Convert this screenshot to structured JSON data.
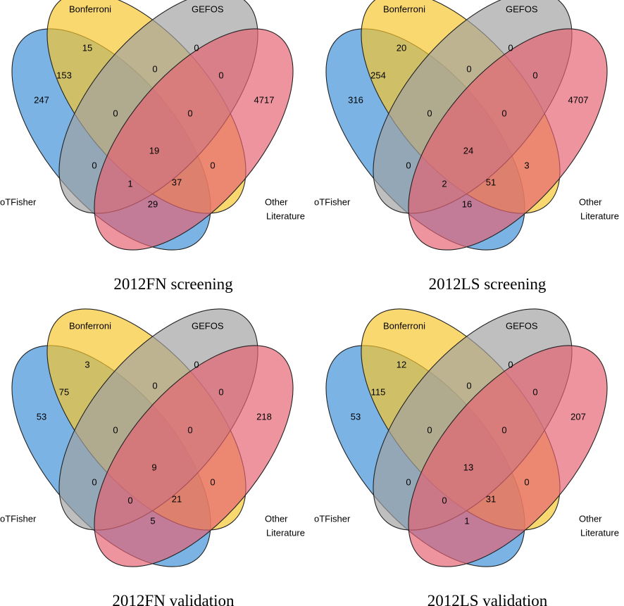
{
  "set_colors": {
    "otfisher": "#3d8fd8",
    "bonferroni": "#f7c52c",
    "gefos": "#a0a0a0",
    "other_literature": "#e56272"
  },
  "panels": [
    {
      "title": "2012FN screening",
      "labels": {
        "otfisher": "oTFisher",
        "bonferroni": "Bonferroni",
        "gefos": "GEFOS",
        "other_line1": "Other",
        "other_line2": "Literature"
      },
      "counts": {
        "otfisher_only": "247",
        "bonferroni_only": "15",
        "gefos_only": "0",
        "other_only": "4717",
        "otfisher_bonferroni": "153",
        "bonferroni_gefos": "0",
        "gefos_other": "0",
        "otfisher_bonferroni_gefos": "0",
        "bonferroni_gefos_other": "0",
        "all_four": "19",
        "otfisher_gefos": "0",
        "bonferroni_other": "0",
        "otfisher_gefos_other": "1",
        "otfisher_bonferroni_other": "37",
        "otfisher_other": "29"
      }
    },
    {
      "title": "2012LS screening",
      "labels": {
        "otfisher": "oTFisher",
        "bonferroni": "Bonferroni",
        "gefos": "GEFOS",
        "other_line1": "Other",
        "other_line2": "Literature"
      },
      "counts": {
        "otfisher_only": "316",
        "bonferroni_only": "20",
        "gefos_only": "0",
        "other_only": "4707",
        "otfisher_bonferroni": "254",
        "bonferroni_gefos": "0",
        "gefos_other": "0",
        "otfisher_bonferroni_gefos": "0",
        "bonferroni_gefos_other": "0",
        "all_four": "24",
        "otfisher_gefos": "0",
        "bonferroni_other": "3",
        "otfisher_gefos_other": "2",
        "otfisher_bonferroni_other": "51",
        "otfisher_other": "16"
      }
    },
    {
      "title": "2012FN validation",
      "labels": {
        "otfisher": "oTFisher",
        "bonferroni": "Bonferroni",
        "gefos": "GEFOS",
        "other_line1": "Other",
        "other_line2": "Literature"
      },
      "counts": {
        "otfisher_only": "53",
        "bonferroni_only": "3",
        "gefos_only": "0",
        "other_only": "218",
        "otfisher_bonferroni": "75",
        "bonferroni_gefos": "0",
        "gefos_other": "0",
        "otfisher_bonferroni_gefos": "0",
        "bonferroni_gefos_other": "0",
        "all_four": "9",
        "otfisher_gefos": "0",
        "bonferroni_other": "0",
        "otfisher_gefos_other": "0",
        "otfisher_bonferroni_other": "21",
        "otfisher_other": "5"
      }
    },
    {
      "title": "2012LS validation",
      "labels": {
        "otfisher": "oTFisher",
        "bonferroni": "Bonferroni",
        "gefos": "GEFOS",
        "other_line1": "Other",
        "other_line2": "Literature"
      },
      "counts": {
        "otfisher_only": "53",
        "bonferroni_only": "12",
        "gefos_only": "0",
        "other_only": "207",
        "otfisher_bonferroni": "115",
        "bonferroni_gefos": "0",
        "gefos_other": "0",
        "otfisher_bonferroni_gefos": "0",
        "bonferroni_gefos_other": "0",
        "all_four": "13",
        "otfisher_gefos": "0",
        "bonferroni_other": "0",
        "otfisher_gefos_other": "0",
        "otfisher_bonferroni_other": "31",
        "otfisher_other": "1"
      }
    }
  ]
}
